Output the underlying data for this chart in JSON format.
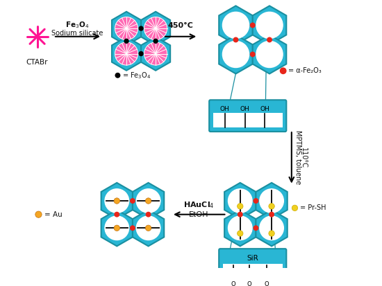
{
  "bg_color": "#ffffff",
  "hex_fill": "#29b6d4",
  "hex_edge": "#1a8fa0",
  "pink_fill": "#ff69b4",
  "pink_color": "#ff1493",
  "red_dot": "#e8251a",
  "orange_dot": "#f5a623",
  "yellow_dot": "#f0d020",
  "text_color": "#111111",
  "ctabr_label": "CTABr",
  "step1_top": "Fe$_3$O$_4$",
  "step1_bot": "Sodium silicate",
  "step2_label": "450°C",
  "step3_top": "MPTMS, toluene",
  "step3_bot": "110°C",
  "step4_top": "HAuCl$_4$",
  "step4_bot": "EtOH"
}
